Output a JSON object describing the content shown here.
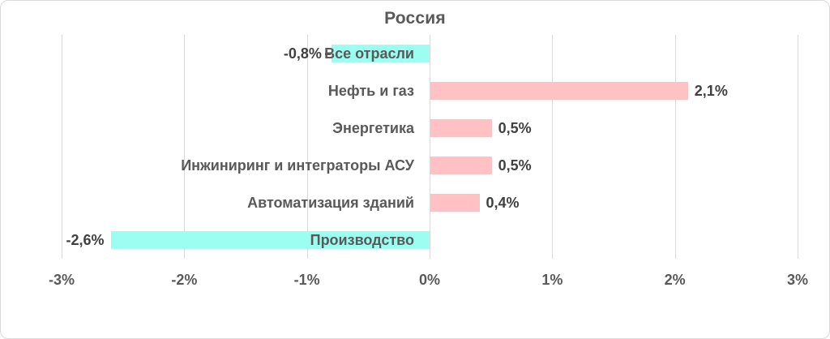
{
  "title": "Россия",
  "chart_data": {
    "type": "bar",
    "orientation": "horizontal",
    "title": "Россия",
    "categories": [
      "Все отрасли",
      "Нефть и газ",
      "Энергетика",
      "Инжиниринг и интеграторы АСУ",
      "Автоматизация зданий",
      "Производство"
    ],
    "values": [
      -0.8,
      2.1,
      0.5,
      0.5,
      0.4,
      -2.6
    ],
    "value_labels": [
      "-0,8%",
      "2,1%",
      "0,5%",
      "0,5%",
      "0,4%",
      "-2,6%"
    ],
    "xlabel": "",
    "ylabel": "",
    "xlim": [
      -3,
      3
    ],
    "x_tick_values": [
      -3,
      -2,
      -1,
      0,
      1,
      2,
      3
    ],
    "x_tick_labels": [
      "-3%",
      "-2%",
      "-1%",
      "0%",
      "1%",
      "2%",
      "3%"
    ],
    "grid": true,
    "legend": "none",
    "label_dash_indexes": [
      0
    ],
    "colors": {
      "positive_bar": "#ffc1c3",
      "negative_bar": "#9bfef0",
      "gridline": "#d9d9d9",
      "title_text": "#595959",
      "category_text": "#595959",
      "value_text": "#404040",
      "axis_text": "#595959",
      "border": "#d9d9d9"
    }
  }
}
